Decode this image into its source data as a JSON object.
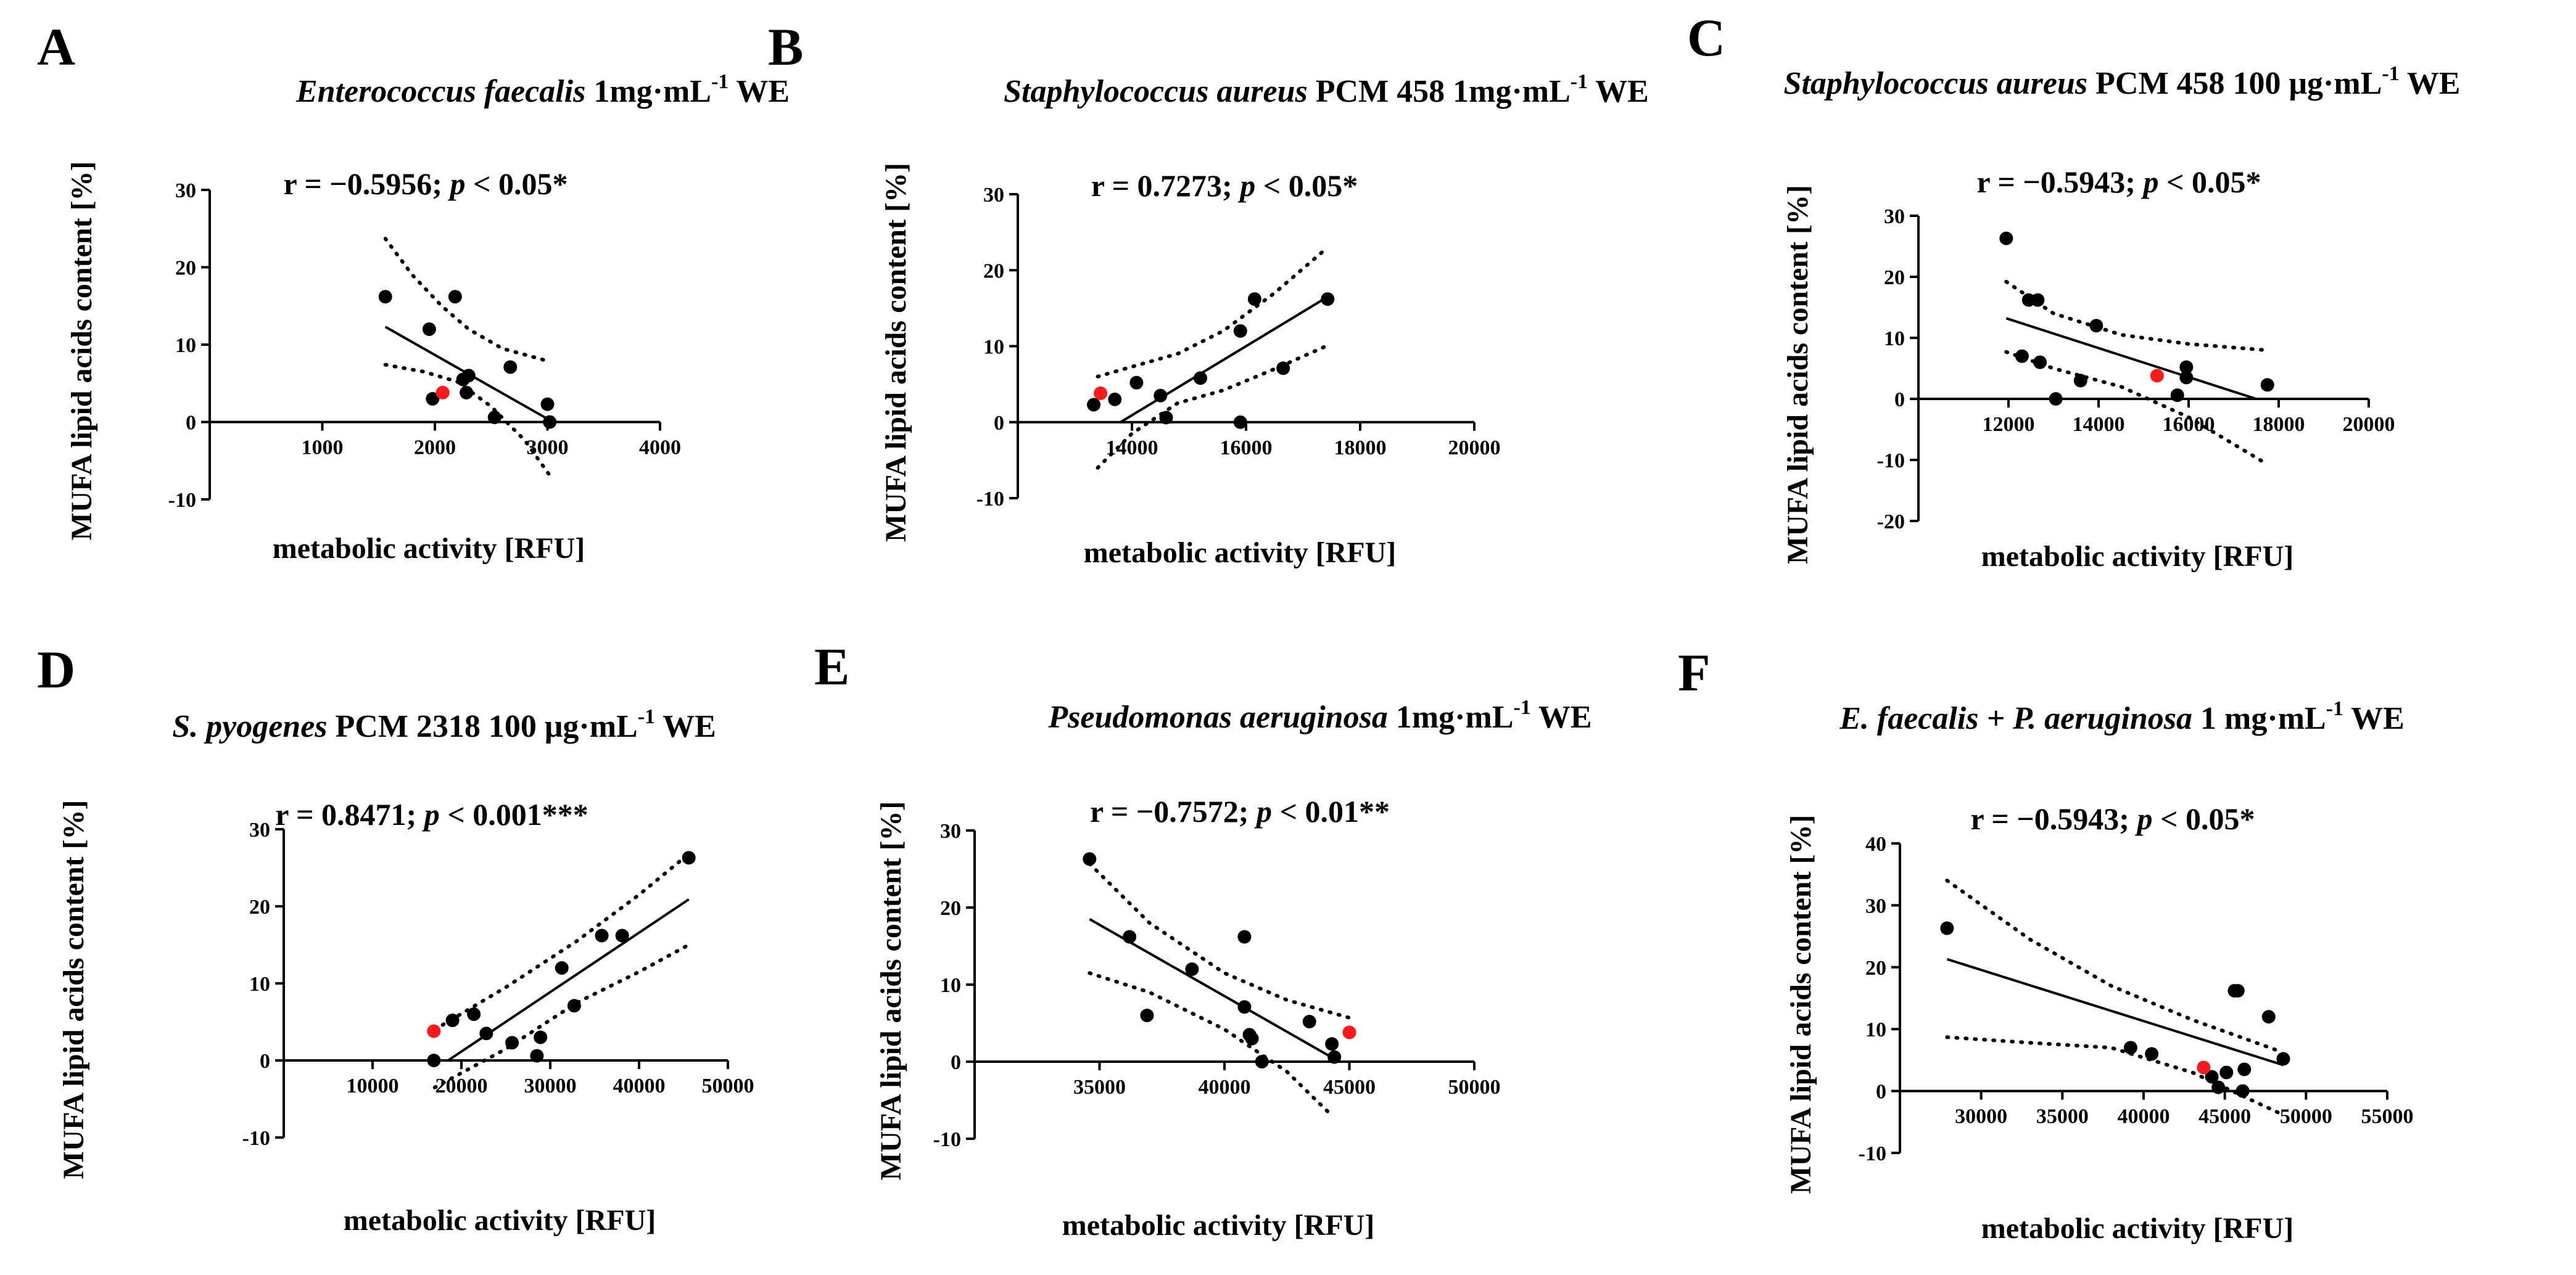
{
  "chart_data": [
    {
      "type": "scatter",
      "panel": "A",
      "title": {
        "species": "Enterococcus faecalis",
        "rest": "1mg·mL",
        "sup": "-1",
        "tail": "WE"
      },
      "stat": {
        "lead": "r = −0.5956; ",
        "p": "p",
        "tail": " < 0.05*"
      },
      "xlabel": "metabolic activity [RFU]",
      "ylabel": "MUFA lipid acids content [%]",
      "xlim": [
        0,
        4000
      ],
      "ylim": [
        -10,
        30
      ],
      "xticks": [
        1000,
        2000,
        3000,
        4000
      ],
      "yticks": [
        -10,
        0,
        10,
        20,
        30
      ],
      "points": [
        [
          1560,
          16.2
        ],
        [
          1950,
          12
        ],
        [
          1980,
          3
        ],
        [
          2180,
          16.2
        ],
        [
          2250,
          5.5
        ],
        [
          2280,
          3.8
        ],
        [
          2300,
          6
        ],
        [
          2530,
          0.6
        ],
        [
          2670,
          7.1
        ],
        [
          3000,
          2.3
        ],
        [
          3020,
          0
        ]
      ],
      "highlight": [
        2070,
        3.8
      ],
      "fit": [
        [
          1560,
          12.3
        ],
        [
          3050,
          0
        ]
      ],
      "ci_upper": [
        [
          1560,
          23.7
        ],
        [
          1800,
          19
        ],
        [
          2060,
          15
        ],
        [
          2300,
          12
        ],
        [
          2600,
          9.5
        ],
        [
          3000,
          7.9
        ]
      ],
      "ci_lower": [
        [
          1560,
          7.4
        ],
        [
          1900,
          6.5
        ],
        [
          2200,
          5.2
        ],
        [
          2500,
          2
        ],
        [
          2800,
          -2.4
        ],
        [
          3050,
          -7.5
        ]
      ]
    },
    {
      "type": "scatter",
      "panel": "B",
      "title": {
        "species": "Staphylococcus aureus",
        "rest": "PCM 458  1mg·mL",
        "sup": "-1",
        "tail": "WE"
      },
      "stat": {
        "lead": "r = 0.7273; ",
        "p": "p",
        "tail": " < 0.05*"
      },
      "xlabel": "metabolic activity [RFU]",
      "ylabel": "MUFA lipid acids content [%]",
      "xlim": [
        12000,
        20000
      ],
      "ylim": [
        -10,
        30
      ],
      "xticks": [
        14000,
        16000,
        18000,
        20000
      ],
      "yticks": [
        -10,
        0,
        10,
        20,
        30
      ],
      "points": [
        [
          13330,
          2.3
        ],
        [
          13700,
          3
        ],
        [
          14080,
          5.2
        ],
        [
          14500,
          3.5
        ],
        [
          14600,
          0.6
        ],
        [
          15200,
          5.8
        ],
        [
          15900,
          0
        ],
        [
          15900,
          12
        ],
        [
          16150,
          16.2
        ],
        [
          16650,
          7.1
        ],
        [
          17430,
          16.2
        ]
      ],
      "highlight": [
        13450,
        3.8
      ],
      "fit": [
        [
          13800,
          0
        ],
        [
          17430,
          16.5
        ]
      ],
      "ci_upper": [
        [
          13400,
          6
        ],
        [
          14000,
          7.3
        ],
        [
          14800,
          9
        ],
        [
          15600,
          12
        ],
        [
          16500,
          17
        ],
        [
          17400,
          22.8
        ]
      ],
      "ci_lower": [
        [
          13400,
          -6
        ],
        [
          14000,
          -1.5
        ],
        [
          14800,
          2.5
        ],
        [
          15600,
          4.2
        ],
        [
          16500,
          7
        ],
        [
          17400,
          10
        ]
      ]
    },
    {
      "type": "scatter",
      "panel": "C",
      "title": {
        "species": "Staphylococcus aureus",
        "rest": "PCM 458 100 μg·mL",
        "sup": "-1",
        "tail": "WE"
      },
      "stat": {
        "lead": "r = −0.5943; ",
        "p": "p",
        "tail": " < 0.05*"
      },
      "xlabel": "metabolic activity [RFU]",
      "ylabel": "MUFA lipid acids content [%]",
      "xlim": [
        10000,
        20000
      ],
      "ylim": [
        -20,
        30
      ],
      "xticks": [
        12000,
        14000,
        16000,
        18000,
        20000
      ],
      "yticks": [
        -20,
        -10,
        0,
        10,
        20,
        30
      ],
      "points": [
        [
          11950,
          26.3
        ],
        [
          12300,
          7
        ],
        [
          12450,
          16.2
        ],
        [
          12650,
          16.2
        ],
        [
          12700,
          6
        ],
        [
          13050,
          0
        ],
        [
          13600,
          3
        ],
        [
          13950,
          12
        ],
        [
          15750,
          0.6
        ],
        [
          15950,
          3.5
        ],
        [
          15950,
          5.2
        ],
        [
          17750,
          2.3
        ]
      ],
      "highlight": [
        15300,
        3.8
      ],
      "fit": [
        [
          11950,
          13.2
        ],
        [
          17500,
          0
        ]
      ],
      "ci_upper": [
        [
          11950,
          19.2
        ],
        [
          13000,
          14
        ],
        [
          14500,
          10.5
        ],
        [
          16000,
          9
        ],
        [
          17700,
          8
        ]
      ],
      "ci_lower": [
        [
          11950,
          7.7
        ],
        [
          13000,
          5
        ],
        [
          14500,
          2
        ],
        [
          16000,
          -3
        ],
        [
          17700,
          -10.5
        ]
      ]
    },
    {
      "type": "scatter",
      "panel": "D",
      "title": {
        "species": "S. pyogenes",
        "rest": "PCM 2318 100 μg·mL",
        "sup": "-1",
        "tail": "WE"
      },
      "stat": {
        "lead": "r = 0.8471; ",
        "p": "p",
        "tail": " < 0.001***"
      },
      "xlabel": "metabolic activity [RFU]",
      "ylabel": "MUFA lipid acids content [%]",
      "xlim": [
        0,
        50000
      ],
      "ylim": [
        -10,
        30
      ],
      "xticks": [
        10000,
        20000,
        30000,
        40000,
        50000
      ],
      "yticks": [
        -10,
        0,
        10,
        20,
        30
      ],
      "points": [
        [
          16900,
          0
        ],
        [
          19000,
          5.2
        ],
        [
          21400,
          6
        ],
        [
          22800,
          3.5
        ],
        [
          25700,
          2.3
        ],
        [
          28500,
          0.6
        ],
        [
          28900,
          3
        ],
        [
          31300,
          12
        ],
        [
          32700,
          7.1
        ],
        [
          35800,
          16.2
        ],
        [
          38100,
          16.2
        ],
        [
          45600,
          26.3
        ]
      ],
      "highlight": [
        16900,
        3.8
      ],
      "fit": [
        [
          18500,
          0
        ],
        [
          45600,
          20.9
        ]
      ],
      "ci_upper": [
        [
          17000,
          4
        ],
        [
          25000,
          9.5
        ],
        [
          33000,
          15.5
        ],
        [
          40000,
          21.5
        ],
        [
          45600,
          26.8
        ]
      ],
      "ci_lower": [
        [
          17000,
          -3.5
        ],
        [
          25000,
          1.5
        ],
        [
          33000,
          7.5
        ],
        [
          40000,
          11.5
        ],
        [
          45600,
          15
        ]
      ]
    },
    {
      "type": "scatter",
      "panel": "E",
      "title": {
        "species": "Pseudomonas aeruginosa",
        "rest": "1mg·mL",
        "sup": "-1",
        "tail": "WE"
      },
      "stat": {
        "lead": "r = −0.7572; ",
        "p": "p",
        "tail": " < 0.01**"
      },
      "xlabel": "metabolic activity [RFU]",
      "ylabel": "MUFA lipid acids content [%]",
      "xlim": [
        30000,
        50000
      ],
      "ylim": [
        -10,
        30
      ],
      "xticks": [
        35000,
        40000,
        45000,
        50000
      ],
      "yticks": [
        -10,
        0,
        10,
        20,
        30
      ],
      "points": [
        [
          34600,
          26.3
        ],
        [
          36200,
          16.2
        ],
        [
          36900,
          6
        ],
        [
          38700,
          12
        ],
        [
          40800,
          16.2
        ],
        [
          40800,
          7.1
        ],
        [
          41000,
          3.5
        ],
        [
          41100,
          3
        ],
        [
          41500,
          0
        ],
        [
          43400,
          5.2
        ],
        [
          44300,
          2.3
        ],
        [
          44400,
          0.6
        ]
      ],
      "highlight": [
        45000,
        3.8
      ],
      "fit": [
        [
          34600,
          18.5
        ],
        [
          44600,
          0
        ]
      ],
      "ci_upper": [
        [
          34600,
          25.7
        ],
        [
          37000,
          18
        ],
        [
          40000,
          11.5
        ],
        [
          42500,
          8
        ],
        [
          45000,
          5.7
        ]
      ],
      "ci_lower": [
        [
          34600,
          11.5
        ],
        [
          37000,
          9
        ],
        [
          40000,
          4.2
        ],
        [
          42500,
          -1.3
        ],
        [
          44300,
          -7
        ]
      ]
    },
    {
      "type": "scatter",
      "panel": "F",
      "title": {
        "species": "E. faecalis + P. aeruginosa",
        "rest": "1 mg·mL",
        "sup": "-1",
        "tail": "WE"
      },
      "stat": {
        "lead": "r = −0.5943; ",
        "p": "p",
        "tail": " < 0.05*"
      },
      "xlabel": "metabolic activity [RFU]",
      "ylabel": "MUFA lipid acids content [%]",
      "xlim": [
        25000,
        55000
      ],
      "ylim": [
        -10,
        40
      ],
      "xticks": [
        30000,
        35000,
        40000,
        45000,
        50000,
        55000
      ],
      "yticks": [
        -10,
        0,
        10,
        20,
        30,
        40
      ],
      "points": [
        [
          27900,
          26.3
        ],
        [
          39200,
          7
        ],
        [
          40500,
          6
        ],
        [
          44200,
          2.3
        ],
        [
          44600,
          0.6
        ],
        [
          45100,
          3
        ],
        [
          45600,
          16.2
        ],
        [
          45800,
          16.2
        ],
        [
          46100,
          0
        ],
        [
          46200,
          3.5
        ],
        [
          47700,
          12
        ],
        [
          48600,
          5.2
        ]
      ],
      "highlight": [
        43700,
        3.8
      ],
      "fit": [
        [
          27900,
          21.3
        ],
        [
          48600,
          4.2
        ]
      ],
      "ci_upper": [
        [
          27900,
          34
        ],
        [
          33000,
          24.5
        ],
        [
          38000,
          17
        ],
        [
          43000,
          11.5
        ],
        [
          48300,
          6.5
        ]
      ],
      "ci_lower": [
        [
          27900,
          8.7
        ],
        [
          33000,
          7.8
        ],
        [
          38000,
          7
        ],
        [
          43000,
          3
        ],
        [
          48300,
          -3.5
        ]
      ]
    }
  ]
}
